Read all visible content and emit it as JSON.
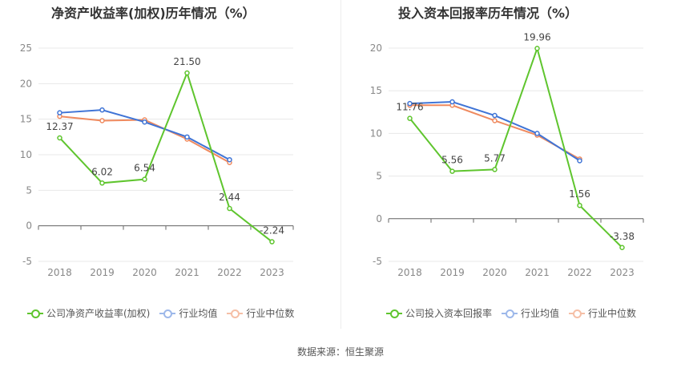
{
  "source_label": "数据来源：恒生聚源",
  "colors": {
    "company": "#5fc52e",
    "avg": "#3f74d6",
    "median": "#ef8a5f"
  },
  "chart_data": [
    {
      "type": "line",
      "title": "净资产收益率(加权)历年情况（%）",
      "categories": [
        "2018",
        "2019",
        "2020",
        "2021",
        "2022",
        "2023"
      ],
      "ylim": [
        -5,
        25
      ],
      "yticks": [
        -5,
        0,
        5,
        10,
        15,
        20,
        25
      ],
      "grid": true,
      "legend_position": "bottom",
      "series": [
        {
          "name": "公司净资产收益率(加权)",
          "values": [
            12.37,
            6.02,
            6.54,
            21.5,
            2.44,
            -2.24
          ],
          "labels": [
            "12.37",
            "6.02",
            "6.54",
            "21.50",
            "2.44",
            "-2.24"
          ]
        },
        {
          "name": "行业均值",
          "values": [
            15.9,
            16.3,
            14.6,
            12.5,
            9.3,
            null
          ]
        },
        {
          "name": "行业中位数",
          "values": [
            15.4,
            14.8,
            14.9,
            12.2,
            8.9,
            null
          ]
        }
      ]
    },
    {
      "type": "line",
      "title": "投入资本回报率历年情况（%）",
      "categories": [
        "2018",
        "2019",
        "2020",
        "2021",
        "2022",
        "2023"
      ],
      "ylim": [
        -5,
        20
      ],
      "yticks": [
        -5,
        0,
        5,
        10,
        15,
        20
      ],
      "grid": true,
      "legend_position": "bottom",
      "series": [
        {
          "name": "公司投入资本回报率",
          "values": [
            11.76,
            5.56,
            5.77,
            19.96,
            1.56,
            -3.38
          ],
          "labels": [
            "11.76",
            "5.56",
            "5.77",
            "19.96",
            "1.56",
            "-3.38"
          ]
        },
        {
          "name": "行业均值",
          "values": [
            13.5,
            13.7,
            12.1,
            10.0,
            6.8,
            null
          ]
        },
        {
          "name": "行业中位数",
          "values": [
            13.3,
            13.3,
            11.5,
            9.8,
            7.0,
            null
          ]
        }
      ]
    }
  ]
}
